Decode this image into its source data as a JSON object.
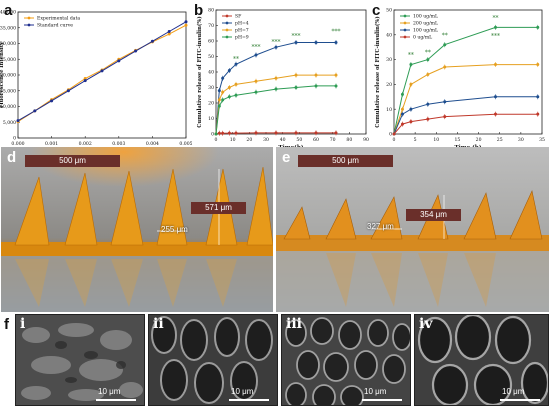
{
  "panels": {
    "a": "a",
    "b": "b",
    "c": "c",
    "d": "d",
    "e": "e",
    "f": "f"
  },
  "chart_data": [
    {
      "type": "line",
      "panel": "a",
      "xlabel": "C_PVA(mg/mL)",
      "ylabel": "Fluorescence Intensity",
      "xlim": [
        0.0,
        0.005
      ],
      "ylim": [
        0,
        40000
      ],
      "xticks": [
        "0.000",
        "0.001",
        "0.002",
        "0.003",
        "0.004",
        "0.005"
      ],
      "yticks": [
        "0",
        "5,000",
        "10,000",
        "15,000",
        "20,000",
        "25,000",
        "30,000",
        "35,000",
        "40,000"
      ],
      "legend_position": "top-left",
      "series": [
        {
          "name": "Experimental data",
          "color": "#f39c12",
          "x": [
            0.0,
            0.0005,
            0.001,
            0.0015,
            0.002,
            0.0025,
            0.003,
            0.0035,
            0.004,
            0.0045,
            0.005
          ],
          "y": [
            5200,
            8600,
            12200,
            15300,
            18900,
            21600,
            25000,
            27800,
            30500,
            33000,
            35800
          ]
        },
        {
          "name": "Standard curve",
          "color": "#1f2f8f",
          "x": [
            0.0,
            0.0005,
            0.001,
            0.0015,
            0.002,
            0.0025,
            0.003,
            0.0035,
            0.004,
            0.0045,
            0.005
          ],
          "y": [
            5500,
            8600,
            11800,
            15000,
            18200,
            21300,
            24500,
            27600,
            30700,
            33800,
            36900
          ]
        }
      ]
    },
    {
      "type": "line",
      "panel": "b",
      "xlabel": "Time(h)",
      "ylabel": "Cumulative release of FITC-insulin(%)",
      "xlim": [
        0,
        90
      ],
      "ylim": [
        0,
        80
      ],
      "xticks": [
        "0",
        "10",
        "20",
        "30",
        "40",
        "50",
        "60",
        "70",
        "80",
        "90"
      ],
      "yticks": [
        "0",
        "10",
        "20",
        "30",
        "40",
        "50",
        "60",
        "70",
        "80"
      ],
      "legend_position": "top-left",
      "annotations": [
        "**",
        "***",
        "***",
        "***",
        "***"
      ],
      "series": [
        {
          "name": "SF",
          "color": "#c0392b",
          "x": [
            0,
            2,
            4,
            8,
            12,
            24,
            36,
            48,
            60,
            72
          ],
          "y": [
            0,
            0.5,
            0.5,
            0.6,
            0.6,
            0.7,
            0.7,
            0.7,
            0.7,
            0.7
          ]
        },
        {
          "name": "pH=4",
          "color": "#1f4e8f",
          "x": [
            0,
            2,
            4,
            8,
            12,
            24,
            36,
            48,
            60,
            72
          ],
          "y": [
            0,
            28,
            36,
            41,
            45,
            51,
            56,
            59,
            59,
            59
          ]
        },
        {
          "name": "pH=7",
          "color": "#e6a020",
          "x": [
            0,
            2,
            4,
            8,
            12,
            24,
            36,
            48,
            60,
            72
          ],
          "y": [
            0,
            22,
            27,
            30,
            32,
            34,
            36,
            38,
            38,
            38
          ]
        },
        {
          "name": "pH=9",
          "color": "#2e9c55",
          "x": [
            0,
            2,
            4,
            8,
            12,
            24,
            36,
            48,
            60,
            72
          ],
          "y": [
            0,
            18,
            22,
            24,
            25,
            27,
            29,
            30,
            31,
            31
          ]
        }
      ]
    },
    {
      "type": "line",
      "panel": "c",
      "xlabel": "Time (h)",
      "ylabel": "Cumulative release of FITC-insulin(%)",
      "xlim": [
        0,
        35
      ],
      "ylim": [
        0,
        50
      ],
      "xticks": [
        "0",
        "5",
        "10",
        "15",
        "20",
        "25",
        "30",
        "35"
      ],
      "yticks": [
        "0",
        "10",
        "20",
        "30",
        "40",
        "50"
      ],
      "legend_position": "top-left",
      "annotations": [
        "**",
        "**",
        "**",
        "**",
        "***"
      ],
      "series": [
        {
          "name": "100 ug/mL",
          "color": "#2e9c55",
          "x": [
            0,
            2,
            4,
            8,
            12,
            24,
            34
          ],
          "y": [
            0,
            16,
            28,
            30,
            36,
            43,
            43
          ]
        },
        {
          "name": "200 ug/mL",
          "color": "#e6a020",
          "x": [
            0,
            2,
            4,
            8,
            12,
            24,
            34
          ],
          "y": [
            0,
            10,
            20,
            24,
            27,
            28,
            28
          ]
        },
        {
          "name": "100 ug/mL",
          "color": "#1f4e8f",
          "x": [
            0,
            2,
            4,
            8,
            12,
            24,
            34
          ],
          "y": [
            0,
            8,
            10,
            12,
            13,
            15,
            15
          ]
        },
        {
          "name": "0 ug/mL",
          "color": "#c0392b",
          "x": [
            0,
            2,
            4,
            8,
            12,
            24,
            34
          ],
          "y": [
            0,
            4,
            5,
            6,
            7,
            8,
            8
          ]
        }
      ]
    }
  ],
  "photos": {
    "d": {
      "scale_label": "500 μm",
      "height_label": "571 μm",
      "base_label": "255 μm"
    },
    "e": {
      "scale_label": "500 μm",
      "height_label": "354 μm",
      "base_label": "327 μm"
    }
  },
  "sem": [
    {
      "numeral": "i",
      "scale_label": "10 μm"
    },
    {
      "numeral": "ii",
      "scale_label": "10 μm"
    },
    {
      "numeral": "iii",
      "scale_label": "10 μm"
    },
    {
      "numeral": "iv",
      "scale_label": "10 μm"
    }
  ]
}
